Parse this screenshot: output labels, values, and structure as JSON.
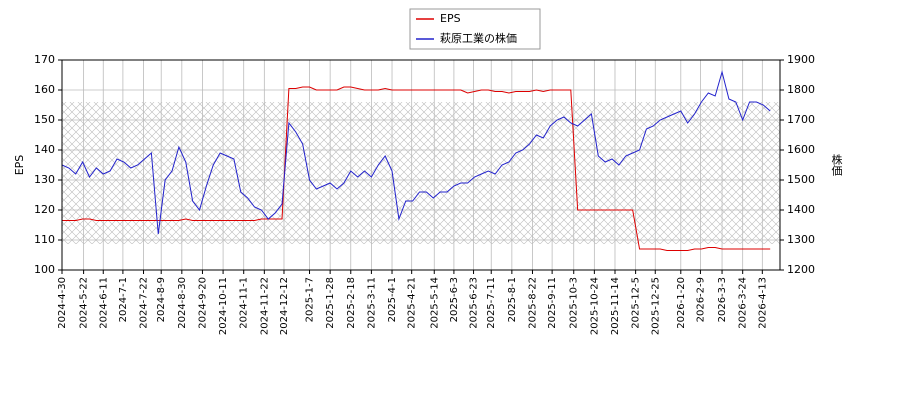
{
  "chart_data": {
    "type": "line",
    "y_label": "EPS",
    "y2_label": "株価",
    "x": [
      "2024-4-30",
      "2024-5-7",
      "2024-5-14",
      "2024-5-21",
      "2024-5-28",
      "2024-6-4",
      "2024-6-11",
      "2024-6-18",
      "2024-6-25",
      "2024-7-2",
      "2024-7-9",
      "2024-7-16",
      "2024-7-23",
      "2024-7-30",
      "2024-8-6",
      "2024-8-13",
      "2024-8-20",
      "2024-8-27",
      "2024-9-3",
      "2024-9-10",
      "2024-9-17",
      "2024-9-24",
      "2024-10-1",
      "2024-10-8",
      "2024-10-15",
      "2024-10-22",
      "2024-10-29",
      "2024-11-5",
      "2024-11-12",
      "2024-11-19",
      "2024-11-26",
      "2024-12-3",
      "2024-12-10",
      "2024-12-17",
      "2024-12-24",
      "2024-12-31",
      "2025-1-7",
      "2025-1-14",
      "2025-1-21",
      "2025-1-28",
      "2025-2-4",
      "2025-2-11",
      "2025-2-18",
      "2025-2-25",
      "2025-3-4",
      "2025-3-11",
      "2025-3-18",
      "2025-3-25",
      "2025-4-1",
      "2025-4-8",
      "2025-4-15",
      "2025-4-22",
      "2025-4-29",
      "2025-5-6",
      "2025-5-13",
      "2025-5-20",
      "2025-5-27",
      "2025-6-3",
      "2025-6-10",
      "2025-6-17",
      "2025-6-24",
      "2025-7-1",
      "2025-7-8",
      "2025-7-15",
      "2025-7-22",
      "2025-7-29",
      "2025-8-5",
      "2025-8-12",
      "2025-8-19",
      "2025-8-26",
      "2025-9-2",
      "2025-9-9",
      "2025-9-16",
      "2025-9-23",
      "2025-9-30",
      "2025-10-7",
      "2025-10-14",
      "2025-10-21",
      "2025-10-28",
      "2025-11-4",
      "2025-11-11",
      "2025-11-18",
      "2025-11-25",
      "2025-12-2",
      "2025-12-9",
      "2025-12-16",
      "2025-12-23",
      "2025-12-30",
      "2026-1-6",
      "2026-1-13",
      "2026-1-20",
      "2026-1-27",
      "2026-2-3",
      "2026-2-10",
      "2026-2-17",
      "2026-2-24",
      "2026-3-3",
      "2026-3-10",
      "2026-3-17",
      "2026-3-24",
      "2026-3-31",
      "2026-4-7",
      "2026-4-14",
      "2026-4-21"
    ],
    "series": [
      {
        "name": "EPS",
        "color": "#dd0000",
        "axis": "y",
        "values": [
          116.5,
          116.5,
          116.5,
          117,
          117,
          116.5,
          116.5,
          116.5,
          116.5,
          116.5,
          116.5,
          116.5,
          116.5,
          116.5,
          116.5,
          116.5,
          116.5,
          116.5,
          117,
          116.5,
          116.5,
          116.5,
          116.5,
          116.5,
          116.5,
          116.5,
          116.5,
          116.5,
          116.5,
          117,
          117,
          117,
          117,
          160.5,
          160.5,
          161,
          161,
          160,
          160,
          160,
          160,
          161,
          161,
          160.5,
          160,
          160,
          160,
          160.5,
          160,
          160,
          160,
          160,
          160,
          160,
          160,
          160,
          160,
          160,
          160,
          159,
          159.5,
          160,
          160,
          159.5,
          159.5,
          159,
          159.5,
          159.5,
          159.5,
          160,
          159.5,
          160,
          160,
          160,
          160,
          120,
          120,
          120,
          120,
          120,
          120,
          120,
          120,
          120,
          107,
          107,
          107,
          107,
          106.5,
          106.5,
          106.5,
          106.5,
          107,
          107,
          107.5,
          107.5,
          107,
          107,
          107,
          107,
          107,
          107,
          107,
          107
        ]
      },
      {
        "name": "萩原工業の株価",
        "color": "#2222cc",
        "axis": "y2",
        "values": [
          1550,
          1540,
          1520,
          1560,
          1510,
          1540,
          1520,
          1530,
          1570,
          1560,
          1540,
          1550,
          1570,
          1590,
          1320,
          1500,
          1530,
          1610,
          1560,
          1430,
          1400,
          1480,
          1550,
          1590,
          1580,
          1570,
          1460,
          1440,
          1410,
          1400,
          1370,
          1390,
          1420,
          1690,
          1660,
          1620,
          1500,
          1470,
          1480,
          1490,
          1470,
          1490,
          1530,
          1510,
          1530,
          1510,
          1550,
          1580,
          1530,
          1370,
          1430,
          1430,
          1460,
          1460,
          1440,
          1460,
          1460,
          1480,
          1490,
          1490,
          1510,
          1520,
          1530,
          1520,
          1550,
          1560,
          1590,
          1600,
          1620,
          1650,
          1640,
          1680,
          1700,
          1710,
          1690,
          1680,
          1700,
          1720,
          1580,
          1560,
          1570,
          1550,
          1580,
          1590,
          1600,
          1670,
          1680,
          1700,
          1710,
          1720,
          1730,
          1690,
          1720,
          1760,
          1790,
          1780,
          1860,
          1770,
          1760,
          1700,
          1760,
          1760,
          1750,
          1730
        ]
      }
    ],
    "xlim": [
      "2024-4-30",
      "2026-5-1"
    ],
    "xticks": [
      "2024-4-30",
      "2024-5-22",
      "2024-6-11",
      "2024-7-1",
      "2024-7-22",
      "2024-8-9",
      "2024-8-30",
      "2024-9-20",
      "2024-10-11",
      "2024-11-1",
      "2024-11-22",
      "2024-12-12",
      "2025-1-7",
      "2025-1-28",
      "2025-2-18",
      "2025-3-11",
      "2025-4-1",
      "2025-4-21",
      "2025-5-14",
      "2025-6-3",
      "2025-6-23",
      "2025-7-11",
      "2025-8-1",
      "2025-8-22",
      "2025-9-11",
      "2025-10-3",
      "2025-10-24",
      "2025-11-14",
      "2025-12-5",
      "2025-12-25",
      "2026-1-20",
      "2026-2-9",
      "2026-3-3",
      "2026-3-24",
      "2026-4-13"
    ],
    "ylim": [
      100,
      170
    ],
    "yticks": [
      100,
      110,
      120,
      130,
      140,
      150,
      160,
      170
    ],
    "y2lim": [
      1200,
      1900
    ],
    "y2ticks": [
      1200,
      1300,
      1400,
      1500,
      1600,
      1700,
      1800,
      1900
    ],
    "grid": true,
    "legend": "top"
  }
}
